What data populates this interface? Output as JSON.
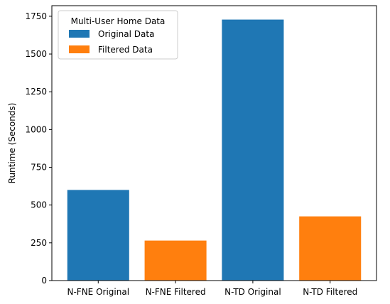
{
  "chart_data": {
    "type": "bar",
    "categories": [
      "N-FNE Original",
      "N-FNE Filtered",
      "N-TD Original",
      "N-TD Filtered"
    ],
    "values": [
      600,
      265,
      1728,
      425
    ],
    "bar_series": [
      "Original Data",
      "Filtered Data",
      "Original Data",
      "Filtered Data"
    ],
    "ylabel": "Runtime (Seconds)",
    "ylim": [
      0,
      1820
    ],
    "yticks": [
      0,
      250,
      500,
      750,
      1000,
      1250,
      1500,
      1750
    ],
    "grid": false,
    "legend": {
      "title": "Multi-User Home Data",
      "placement": "top-left",
      "entries": [
        {
          "name": "Original Data",
          "color": "#1f77b4"
        },
        {
          "name": "Filtered Data",
          "color": "#ff7f0e"
        }
      ]
    }
  }
}
